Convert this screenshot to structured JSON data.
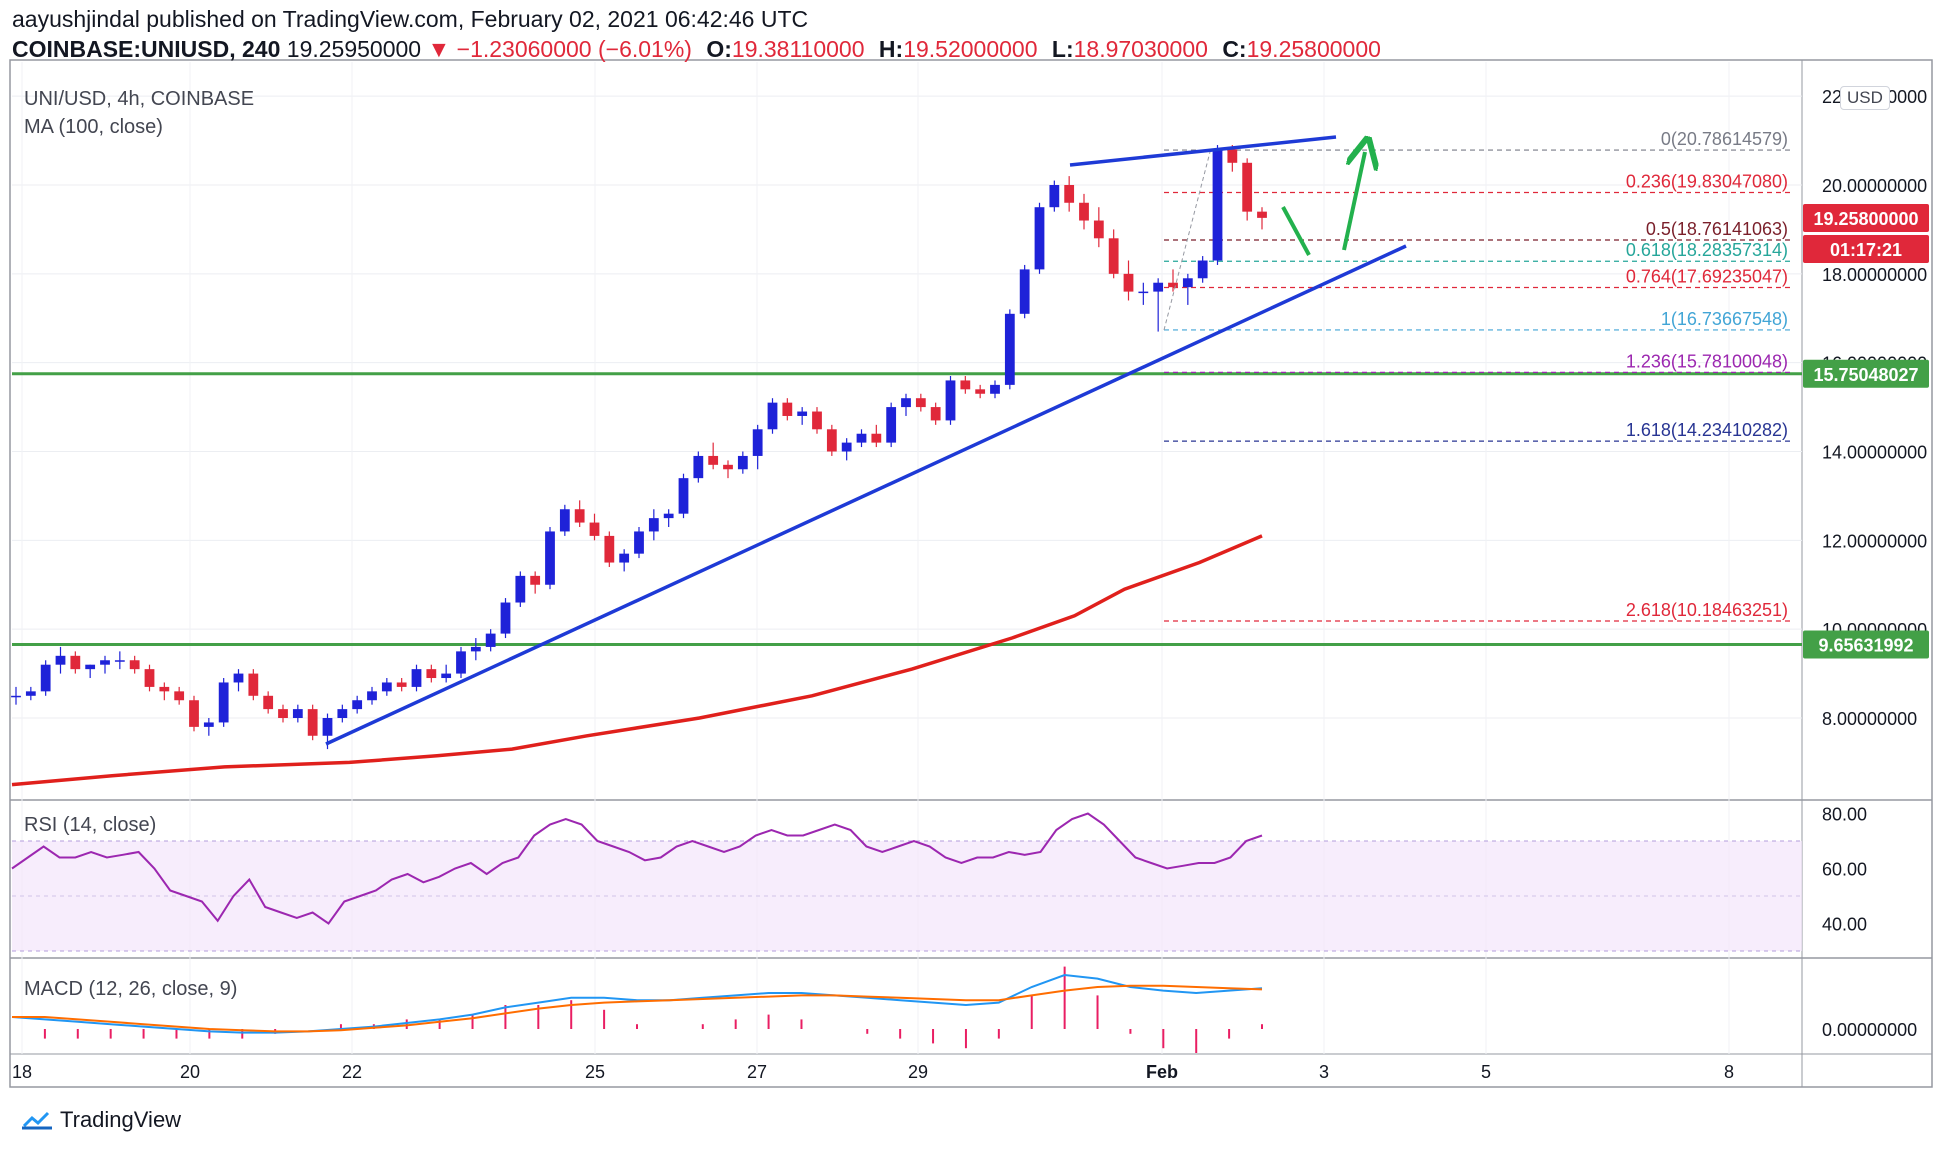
{
  "header": {
    "author": "aayushjindal",
    "published_text": "published on TradingView.com, February 02, 2021 06:42:46 UTC",
    "symbol": "COINBASE:UNIUSD, 240",
    "last": "19.25950000",
    "change_arrow": "▼",
    "change": "−1.23060000 (−6.01%)",
    "o_label": "O:",
    "o": "19.38110000",
    "h_label": "H:",
    "h": "19.52000000",
    "l_label": "L:",
    "l": "18.97030000",
    "c_label": "C:",
    "c": "19.25800000"
  },
  "legend": {
    "title": "UNI/USD, 4h, COINBASE",
    "ma": "MA (100, close)"
  },
  "currency_badge": "USD",
  "price_axis": [
    "22.00000000",
    "20.00000000",
    "18.00000000",
    "16.00000000",
    "14.00000000",
    "12.00000000",
    "10.00000000",
    "8.00000000"
  ],
  "price_tags": [
    {
      "value": "19.25800000",
      "color": "#e0283a"
    },
    {
      "value": "01:17:21",
      "color": "#e0283a"
    },
    {
      "value": "15.75048027",
      "color": "#43a047"
    },
    {
      "value": "9.65631992",
      "color": "#43a047"
    }
  ],
  "fib_levels": [
    {
      "label": "0(20.78614579)",
      "color": "#787b86"
    },
    {
      "label": "0.236(19.83047080)",
      "color": "#e0283a"
    },
    {
      "label": "0.5(18.76141063)",
      "color": "#7a1f2a"
    },
    {
      "label": "0.618(18.28357314)",
      "color": "#26a69a"
    },
    {
      "label": "0.764(17.69235047)",
      "color": "#e0283a"
    },
    {
      "label": "1(16.73667548)",
      "color": "#42a5d6"
    },
    {
      "label": "1.236(15.78100048)",
      "color": "#9c27b0"
    },
    {
      "label": "1.618(14.23410282)",
      "color": "#283593"
    },
    {
      "label": "2.618(10.18463251)",
      "color": "#e0283a"
    }
  ],
  "rsi": {
    "title": "RSI (14, close)",
    "axis": [
      "80.00",
      "60.00",
      "40.00"
    ]
  },
  "macd": {
    "title": "MACD (12, 26, close, 9)",
    "axis": [
      "0.00000000"
    ]
  },
  "time_axis": [
    "18",
    "20",
    "22",
    "25",
    "27",
    "29",
    "Feb",
    "3",
    "5",
    "8"
  ],
  "footer": {
    "brand": "TradingView"
  },
  "colors": {
    "up": "#1e22d8",
    "down": "#e0283a",
    "ma": "#e0201c",
    "trend": "#1e3ad6",
    "support": "#43a047",
    "arrow": "#23b14d",
    "rsi": "#9c27b0",
    "macd": "#2196f3",
    "signal": "#ff6d00"
  },
  "chart_data": {
    "type": "candlestick",
    "title": "UNI/USD, 4h, COINBASE",
    "ylim": [
      6.2,
      22.4
    ],
    "candles": [
      [
        8.5,
        8.7,
        8.3,
        8.5
      ],
      [
        8.5,
        8.7,
        8.4,
        8.6
      ],
      [
        8.6,
        9.3,
        8.5,
        9.2
      ],
      [
        9.2,
        9.6,
        9.0,
        9.4
      ],
      [
        9.4,
        9.5,
        9.0,
        9.1
      ],
      [
        9.1,
        9.2,
        8.9,
        9.2
      ],
      [
        9.2,
        9.4,
        9.0,
        9.3
      ],
      [
        9.3,
        9.5,
        9.1,
        9.3
      ],
      [
        9.3,
        9.4,
        9.0,
        9.1
      ],
      [
        9.1,
        9.2,
        8.6,
        8.7
      ],
      [
        8.7,
        8.8,
        8.4,
        8.6
      ],
      [
        8.6,
        8.7,
        8.3,
        8.4
      ],
      [
        8.4,
        8.5,
        7.7,
        7.8
      ],
      [
        7.8,
        8.0,
        7.6,
        7.9
      ],
      [
        7.9,
        8.9,
        7.8,
        8.8
      ],
      [
        8.8,
        9.1,
        8.6,
        9.0
      ],
      [
        9.0,
        9.1,
        8.4,
        8.5
      ],
      [
        8.5,
        8.6,
        8.1,
        8.2
      ],
      [
        8.2,
        8.3,
        7.9,
        8.0
      ],
      [
        8.0,
        8.3,
        7.9,
        8.2
      ],
      [
        8.2,
        8.3,
        7.5,
        7.6
      ],
      [
        7.6,
        8.1,
        7.3,
        8.0
      ],
      [
        8.0,
        8.3,
        7.9,
        8.2
      ],
      [
        8.2,
        8.5,
        8.1,
        8.4
      ],
      [
        8.4,
        8.7,
        8.3,
        8.6
      ],
      [
        8.6,
        8.9,
        8.5,
        8.8
      ],
      [
        8.8,
        8.9,
        8.6,
        8.7
      ],
      [
        8.7,
        9.2,
        8.6,
        9.1
      ],
      [
        9.1,
        9.2,
        8.8,
        8.9
      ],
      [
        8.9,
        9.2,
        8.8,
        9.0
      ],
      [
        9.0,
        9.6,
        8.9,
        9.5
      ],
      [
        9.5,
        9.8,
        9.3,
        9.6
      ],
      [
        9.6,
        10.0,
        9.5,
        9.9
      ],
      [
        9.9,
        10.7,
        9.8,
        10.6
      ],
      [
        10.6,
        11.3,
        10.5,
        11.2
      ],
      [
        11.2,
        11.3,
        10.8,
        11.0
      ],
      [
        11.0,
        12.3,
        10.9,
        12.2
      ],
      [
        12.2,
        12.8,
        12.1,
        12.7
      ],
      [
        12.7,
        12.9,
        12.3,
        12.4
      ],
      [
        12.4,
        12.6,
        12.0,
        12.1
      ],
      [
        12.1,
        12.2,
        11.4,
        11.5
      ],
      [
        11.5,
        11.8,
        11.3,
        11.7
      ],
      [
        11.7,
        12.3,
        11.6,
        12.2
      ],
      [
        12.2,
        12.7,
        12.0,
        12.5
      ],
      [
        12.5,
        12.7,
        12.3,
        12.6
      ],
      [
        12.6,
        13.5,
        12.5,
        13.4
      ],
      [
        13.4,
        14.0,
        13.3,
        13.9
      ],
      [
        13.9,
        14.2,
        13.6,
        13.7
      ],
      [
        13.7,
        13.8,
        13.4,
        13.6
      ],
      [
        13.6,
        14.0,
        13.5,
        13.9
      ],
      [
        13.9,
        14.6,
        13.6,
        14.5
      ],
      [
        14.5,
        15.2,
        14.4,
        15.1
      ],
      [
        15.1,
        15.2,
        14.7,
        14.8
      ],
      [
        14.8,
        15.0,
        14.6,
        14.9
      ],
      [
        14.9,
        15.0,
        14.4,
        14.5
      ],
      [
        14.5,
        14.6,
        13.9,
        14.0
      ],
      [
        14.0,
        14.3,
        13.8,
        14.2
      ],
      [
        14.2,
        14.5,
        14.1,
        14.4
      ],
      [
        14.4,
        14.6,
        14.1,
        14.2
      ],
      [
        14.2,
        15.1,
        14.1,
        15.0
      ],
      [
        15.0,
        15.3,
        14.8,
        15.2
      ],
      [
        15.2,
        15.3,
        14.9,
        15.0
      ],
      [
        15.0,
        15.1,
        14.6,
        14.7
      ],
      [
        14.7,
        15.7,
        14.6,
        15.6
      ],
      [
        15.6,
        15.7,
        15.3,
        15.4
      ],
      [
        15.4,
        15.5,
        15.2,
        15.3
      ],
      [
        15.3,
        15.6,
        15.2,
        15.5
      ],
      [
        15.5,
        17.2,
        15.4,
        17.1
      ],
      [
        17.1,
        18.2,
        17.0,
        18.1
      ],
      [
        18.1,
        19.6,
        18.0,
        19.5
      ],
      [
        19.5,
        20.1,
        19.4,
        20.0
      ],
      [
        20.0,
        20.2,
        19.4,
        19.6
      ],
      [
        19.6,
        19.8,
        19.0,
        19.2
      ],
      [
        19.2,
        19.5,
        18.6,
        18.8
      ],
      [
        18.8,
        19.0,
        17.9,
        18.0
      ],
      [
        18.0,
        18.3,
        17.4,
        17.6
      ],
      [
        17.6,
        17.8,
        17.3,
        17.6
      ],
      [
        17.6,
        17.9,
        16.7,
        17.8
      ],
      [
        17.8,
        18.1,
        17.6,
        17.7
      ],
      [
        17.7,
        18.0,
        17.3,
        17.9
      ],
      [
        17.9,
        18.4,
        17.8,
        18.3
      ],
      [
        18.3,
        20.9,
        18.2,
        20.8
      ],
      [
        20.8,
        20.9,
        20.3,
        20.5
      ],
      [
        20.5,
        20.6,
        19.2,
        19.4
      ],
      [
        19.4,
        19.5,
        19.0,
        19.26
      ]
    ],
    "ma100": [
      [
        0,
        6.5
      ],
      [
        0.08,
        6.7
      ],
      [
        0.17,
        6.9
      ],
      [
        0.27,
        7.0
      ],
      [
        0.34,
        7.15
      ],
      [
        0.4,
        7.3
      ],
      [
        0.46,
        7.6
      ],
      [
        0.55,
        8.0
      ],
      [
        0.64,
        8.5
      ],
      [
        0.72,
        9.1
      ],
      [
        0.8,
        9.8
      ],
      [
        0.85,
        10.3
      ],
      [
        0.89,
        10.9
      ],
      [
        0.95,
        11.5
      ],
      [
        1.0,
        12.1
      ]
    ],
    "rsi_values": [
      60,
      64,
      68,
      64,
      64,
      66,
      64,
      65,
      66,
      60,
      52,
      50,
      48,
      41,
      50,
      56,
      46,
      44,
      42,
      44,
      40,
      48,
      50,
      52,
      56,
      58,
      55,
      57,
      60,
      62,
      58,
      62,
      64,
      72,
      76,
      78,
      76,
      70,
      68,
      66,
      63,
      64,
      68,
      70,
      68,
      66,
      68,
      72,
      74,
      72,
      72,
      74,
      76,
      74,
      68,
      66,
      68,
      70,
      68,
      64,
      62,
      64,
      64,
      66,
      65,
      66,
      74,
      78,
      80,
      76,
      70,
      64,
      62,
      60,
      61,
      62,
      62,
      64,
      70,
      72
    ],
    "macd": {
      "macd": [
        0.1,
        0.08,
        0.06,
        0.04,
        0.02,
        0.0,
        -0.02,
        -0.03,
        -0.03,
        -0.02,
        0.0,
        0.02,
        0.05,
        0.08,
        0.12,
        0.18,
        0.22,
        0.26,
        0.26,
        0.24,
        0.24,
        0.26,
        0.28,
        0.3,
        0.3,
        0.28,
        0.26,
        0.24,
        0.22,
        0.2,
        0.22,
        0.35,
        0.45,
        0.42,
        0.35,
        0.32,
        0.3,
        0.32,
        0.34
      ],
      "signal": [
        0.1,
        0.1,
        0.08,
        0.06,
        0.04,
        0.02,
        0.0,
        -0.01,
        -0.02,
        -0.02,
        -0.01,
        0.01,
        0.03,
        0.06,
        0.09,
        0.13,
        0.17,
        0.2,
        0.22,
        0.23,
        0.24,
        0.25,
        0.26,
        0.27,
        0.28,
        0.28,
        0.27,
        0.26,
        0.25,
        0.24,
        0.24,
        0.28,
        0.32,
        0.35,
        0.36,
        0.36,
        0.35,
        0.34,
        0.33
      ]
    },
    "annotations": [
      "rising channel resistance",
      "ascending support trendline",
      "green pullback arrow",
      "green upside arrow"
    ]
  }
}
